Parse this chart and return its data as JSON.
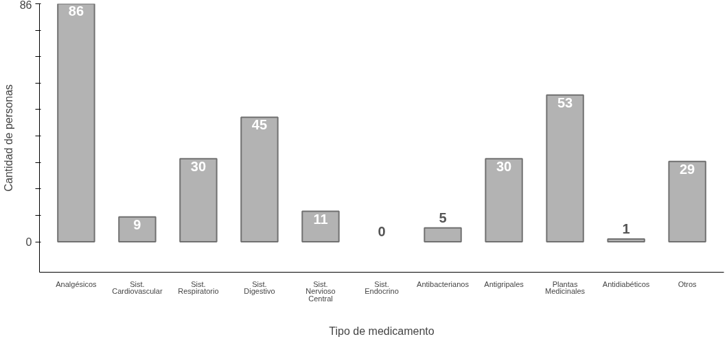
{
  "chart_data": {
    "type": "bar",
    "xlabel": "Tipo de medicamento",
    "ylabel": "Cantidad de personas",
    "categories": [
      "Analgésicos",
      "Sist.\nCardiovascular",
      "Sist.\nRespiratorio",
      "Sist.\nDigestivo",
      "Sist.\nNervioso\nCentral",
      "Sist.\nEndocrino",
      "Antibacterianos",
      "Antigripales",
      "Plantas\nMedicinales",
      "Antidiabéticos",
      "Otros"
    ],
    "values": [
      86,
      9,
      30,
      45,
      11,
      0,
      5,
      30,
      53,
      1,
      29
    ],
    "color": "#b3b3b3",
    "data_labels": true,
    "grid": false,
    "ylim": [
      -11,
      86
    ],
    "yticks": [
      0,
      {
        "value": 9.56,
        "label": null
      },
      {
        "value": 19.11,
        "label": null
      },
      {
        "value": 28.67,
        "label": null
      },
      {
        "value": 38.22,
        "label": null
      },
      {
        "value": 47.78,
        "label": null
      },
      {
        "value": 57.33,
        "label": null
      },
      {
        "value": 66.89,
        "label": null
      },
      {
        "value": 76.44,
        "label": null
      },
      86
    ]
  }
}
